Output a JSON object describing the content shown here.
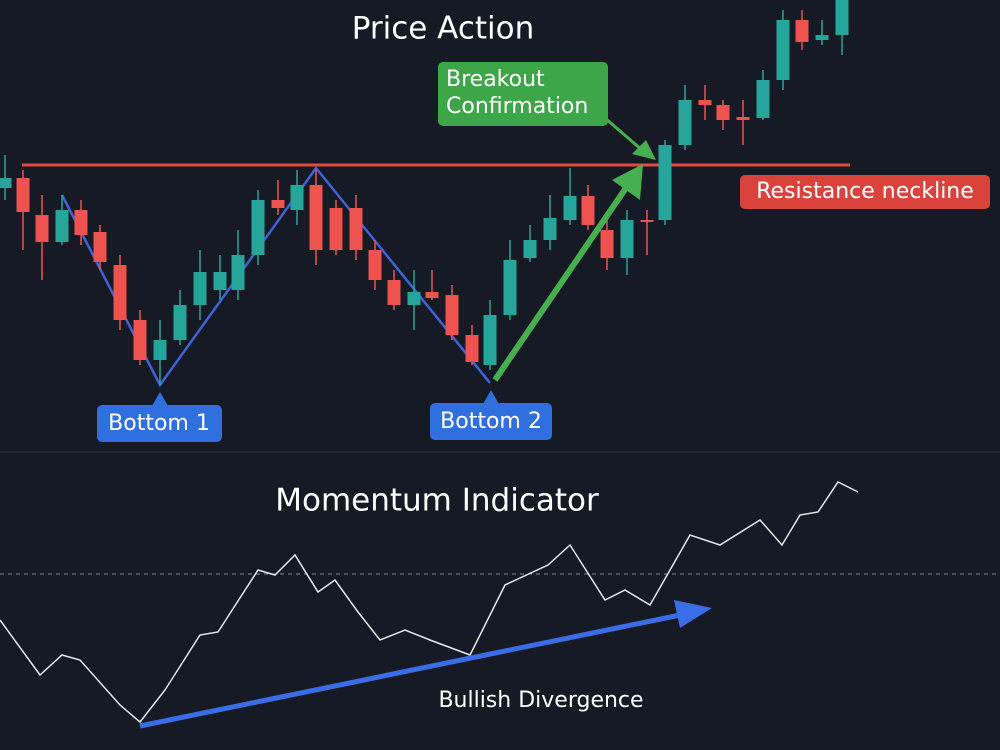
{
  "chart_data": [
    {
      "type": "candlestick",
      "title": "Price Action",
      "x": [
        5,
        23,
        42,
        62,
        81,
        100,
        120,
        140,
        160,
        180,
        200,
        220,
        238,
        258,
        278,
        297,
        316,
        336,
        356,
        375,
        394,
        414,
        432,
        452,
        472,
        490,
        510,
        530,
        550,
        570,
        588,
        607,
        627,
        647,
        665,
        685,
        705,
        723,
        743,
        763,
        783,
        802,
        822,
        842
      ],
      "open": [
        262,
        272,
        235,
        208,
        240,
        218,
        185,
        130,
        90,
        110,
        145,
        160,
        160,
        195,
        250,
        240,
        265,
        242,
        242,
        200,
        170,
        145,
        158,
        155,
        115,
        85,
        135,
        192,
        210,
        230,
        254,
        220,
        192,
        230,
        230,
        305,
        350,
        345,
        333,
        332,
        370,
        430,
        410,
        415
      ],
      "close": [
        272,
        238,
        208,
        240,
        215,
        188,
        130,
        90,
        110,
        145,
        178,
        178,
        195,
        250,
        242,
        265,
        200,
        200,
        200,
        170,
        145,
        158,
        152,
        115,
        88,
        135,
        190,
        210,
        232,
        254,
        225,
        192,
        230,
        228,
        305,
        350,
        345,
        330,
        330,
        370,
        430,
        408,
        415,
        450
      ],
      "high": [
        295,
        280,
        255,
        255,
        250,
        225,
        195,
        140,
        130,
        160,
        200,
        195,
        220,
        260,
        270,
        280,
        280,
        250,
        255,
        210,
        180,
        180,
        180,
        165,
        125,
        150,
        210,
        225,
        255,
        282,
        265,
        230,
        240,
        240,
        310,
        365,
        365,
        350,
        350,
        380,
        440,
        440,
        430,
        450
      ],
      "low": [
        250,
        200,
        170,
        205,
        205,
        180,
        120,
        85,
        65,
        105,
        130,
        150,
        150,
        185,
        235,
        225,
        185,
        195,
        190,
        160,
        140,
        120,
        150,
        110,
        85,
        80,
        130,
        188,
        200,
        225,
        220,
        180,
        175,
        195,
        225,
        300,
        330,
        320,
        305,
        330,
        360,
        400,
        405,
        395
      ],
      "up_color": "#26a69a",
      "down_color": "#ef5350",
      "xlim": [
        0,
        1000
      ],
      "ylim": [
        0,
        450
      ],
      "hlines": [
        {
          "value": 285,
          "label": "Resistance neckline",
          "color": "#e04a3f"
        }
      ],
      "annotations": [
        {
          "text": "Bottom 1"
        },
        {
          "text": "Bottom 2"
        },
        {
          "lines": [
            "Breakout",
            "Confirmation"
          ]
        }
      ]
    },
    {
      "type": "line",
      "title": "Momentum Indicator",
      "x": [
        0,
        40,
        62,
        80,
        120,
        140,
        165,
        200,
        218,
        258,
        275,
        295,
        318,
        335,
        358,
        380,
        405,
        430,
        470,
        505,
        548,
        570,
        605,
        625,
        650,
        690,
        720,
        760,
        782,
        800,
        818,
        838,
        858
      ],
      "values": [
        130,
        75,
        95,
        90,
        45,
        28,
        60,
        115,
        118,
        180,
        175,
        195,
        158,
        170,
        138,
        110,
        120,
        110,
        95,
        165,
        185,
        205,
        150,
        160,
        145,
        215,
        205,
        230,
        205,
        235,
        238,
        268,
        258
      ],
      "color": "#e8e8e8",
      "xlim": [
        0,
        1000
      ],
      "ylim": [
        0,
        300
      ],
      "hlines": [
        {
          "value": 176
        }
      ],
      "annotations": [
        {
          "text": "Bullish Divergence"
        }
      ]
    }
  ]
}
